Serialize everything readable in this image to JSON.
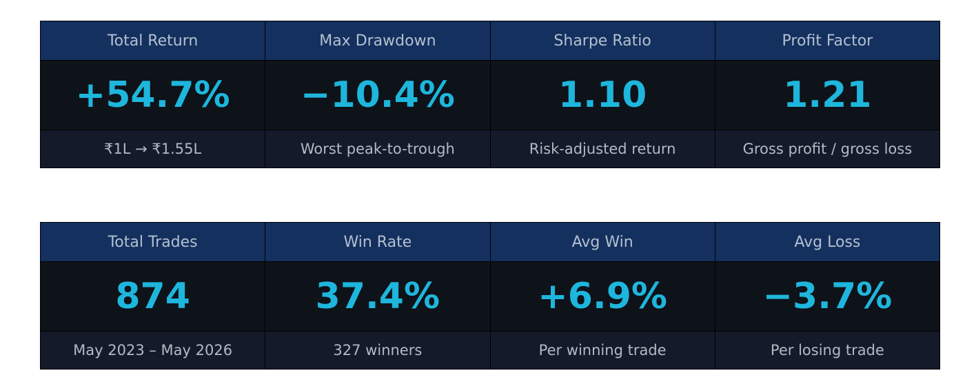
{
  "tables": [
    {
      "cells": [
        {
          "label": "Total Return",
          "value": "+54.7%",
          "sub": "₹1L → ₹1.55L"
        },
        {
          "label": "Max Drawdown",
          "value": "−10.4%",
          "sub": "Worst peak-to-trough"
        },
        {
          "label": "Sharpe Ratio",
          "value": "1.10",
          "sub": "Risk-adjusted return"
        },
        {
          "label": "Profit Factor",
          "value": "1.21",
          "sub": "Gross profit / gross loss"
        }
      ]
    },
    {
      "cells": [
        {
          "label": "Total Trades",
          "value": "874",
          "sub": "May 2023 – May 2026"
        },
        {
          "label": "Win Rate",
          "value": "37.4%",
          "sub": "327 winners"
        },
        {
          "label": "Avg Win",
          "value": "+6.9%",
          "sub": "Per winning trade"
        },
        {
          "label": "Avg Loss",
          "value": "−3.7%",
          "sub": "Per losing trade"
        }
      ]
    }
  ],
  "colors": {
    "header_bg": "#14305e",
    "value_bg": "#0e1219",
    "sub_bg": "#141a2a",
    "value_text": "#1eb6dc"
  }
}
